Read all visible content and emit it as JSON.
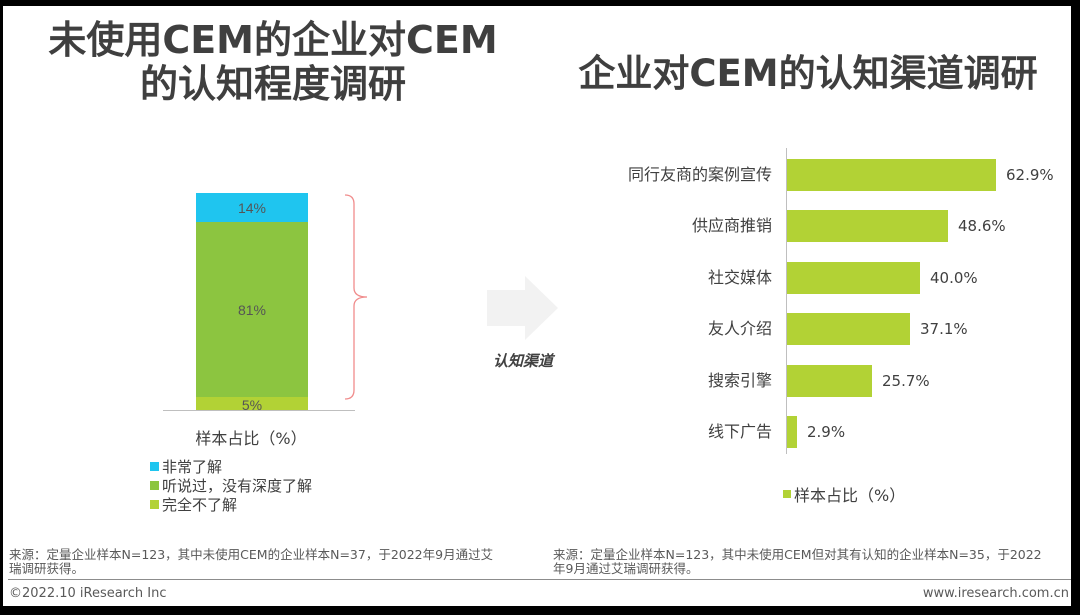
{
  "left_panel": {
    "title_line1": "未使用CEM的企业对CEM",
    "title_line2": "的认知程度调研",
    "axis_label": "样本占比（%）",
    "legend": [
      {
        "label": "非常了解",
        "color": "#1fc5ef"
      },
      {
        "label": "听说过，没有深度了解",
        "color": "#8cc540"
      },
      {
        "label": "完全不了解",
        "color": "#b2d235"
      }
    ],
    "source": "来源：定量企业样本N=123，其中未使用CEM的企业样本N=37，于2022年9月通过艾瑞调研获得。",
    "source_line1": "来源：定量企业样本N=123，其中未使用CEM的企业样本N=37，于2022年9月通过艾",
    "source_line2": "瑞调研获得。"
  },
  "connector": {
    "label": "认知渠道",
    "arrow_icon": "right-arrow"
  },
  "right_panel": {
    "title": "企业对CEM的认知渠道调研",
    "legend_label": "样本占比（%）",
    "source_line1": "来源：定量企业样本N=123，其中未使用CEM但对其有认知的企业样本N=35，于2022",
    "source_line2": "年9月通过艾瑞调研获得。"
  },
  "footer": {
    "copyright": "©2022.10 iResearch Inc",
    "website": "www.iresearch.com.cn"
  },
  "chart_data": [
    {
      "type": "bar",
      "stacked": true,
      "title": "未使用CEM的企业对CEM的认知程度调研",
      "categories": [
        "样本占比（%）"
      ],
      "series": [
        {
          "name": "完全不了解",
          "values": [
            5
          ],
          "label": "5%",
          "color": "#b2d235"
        },
        {
          "name": "听说过，没有深度了解",
          "values": [
            81
          ],
          "label": "81%",
          "color": "#8cc540"
        },
        {
          "name": "非常了解",
          "values": [
            14
          ],
          "label": "14%",
          "color": "#1fc5ef"
        }
      ],
      "xlabel": "样本占比（%）",
      "ylabel": "",
      "ylim": [
        0,
        100
      ],
      "grid": false,
      "legend_position": "bottom",
      "annotations": [
        "brace grouping 非常了解 + 听说过 (95%) leading to 认知渠道"
      ]
    },
    {
      "type": "bar",
      "orientation": "horizontal",
      "title": "企业对CEM的认知渠道调研",
      "categories": [
        "同行友商的案例宣传",
        "供应商推销",
        "社交媒体",
        "友人介绍",
        "搜索引擎",
        "线下广告"
      ],
      "values": [
        62.9,
        48.6,
        40.0,
        37.1,
        25.7,
        2.9
      ],
      "labels": [
        "62.9%",
        "48.6%",
        "40.0%",
        "37.1%",
        "25.7%",
        "2.9%"
      ],
      "series": [
        {
          "name": "样本占比（%）",
          "values": [
            62.9,
            48.6,
            40.0,
            37.1,
            25.7,
            2.9
          ],
          "color": "#b2d235"
        }
      ],
      "xlabel": "",
      "ylabel": "",
      "xlim": [
        0,
        70
      ],
      "grid": false,
      "legend_position": "bottom"
    }
  ]
}
